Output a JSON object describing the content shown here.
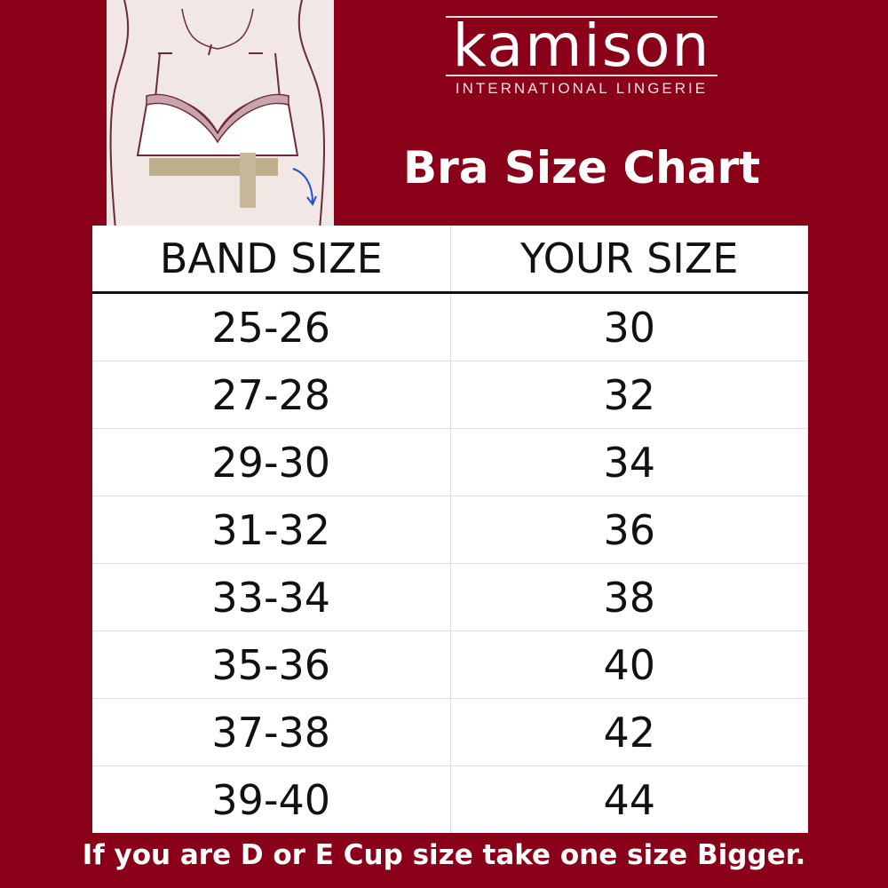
{
  "brand": {
    "name": "kamison",
    "tagline": "INTERNATIONAL LINGERIE"
  },
  "title": "Bra Size Chart",
  "table": {
    "headers": [
      "BAND SIZE",
      "YOUR SIZE"
    ],
    "rows": [
      [
        "25-26",
        "30"
      ],
      [
        "27-28",
        "32"
      ],
      [
        "29-30",
        "34"
      ],
      [
        "31-32",
        "36"
      ],
      [
        "33-34",
        "38"
      ],
      [
        "35-36",
        "40"
      ],
      [
        "37-38",
        "42"
      ],
      [
        "39-40",
        "44"
      ]
    ]
  },
  "footer": "If you are D or E Cup size take one size Bigger.",
  "colors": {
    "background": "#8a0019",
    "table": "#ffffff",
    "text": "#111111"
  }
}
